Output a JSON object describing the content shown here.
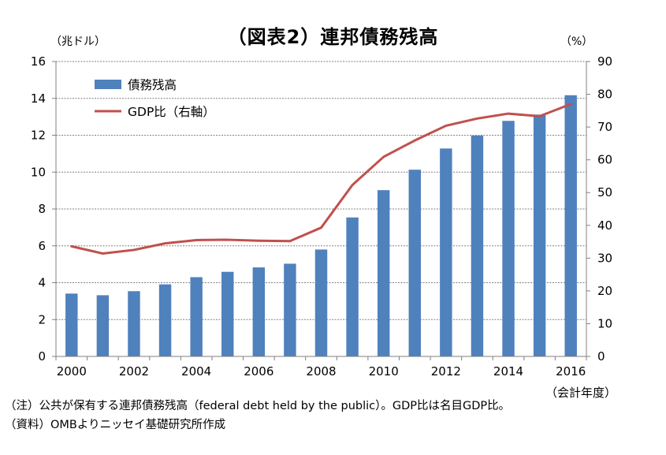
{
  "title": "（図表2）連邦債務残高",
  "left_axis_unit": "（兆ドル）",
  "right_axis_unit": "（%）",
  "x_axis_unit": "（会計年度）",
  "notes": [
    "（注）公共が保有する連邦債務残高（federal debt held by the public）。GDP比は名目GDP比。",
    "（資料）OMBよりニッセイ基礎研究所作成"
  ],
  "colors": {
    "bar": "#4f81bd",
    "line": "#c0504d",
    "grid": "#808080"
  },
  "chart_data": {
    "type": "bar",
    "x": [
      2000,
      2001,
      2002,
      2003,
      2004,
      2005,
      2006,
      2007,
      2008,
      2009,
      2010,
      2011,
      2012,
      2013,
      2014,
      2015,
      2016
    ],
    "x_tick_labels": [
      "2000",
      "2002",
      "2004",
      "2006",
      "2008",
      "2010",
      "2012",
      "2014",
      "2016"
    ],
    "series": [
      {
        "name": "債務残高",
        "type": "bar",
        "axis": "left",
        "values": [
          3.41,
          3.32,
          3.54,
          3.91,
          4.3,
          4.59,
          4.83,
          5.03,
          5.8,
          7.54,
          9.02,
          10.13,
          11.28,
          11.98,
          12.78,
          13.12,
          14.17
        ]
      },
      {
        "name": "GDP比（右軸）",
        "type": "line",
        "axis": "right",
        "values": [
          33.6,
          31.4,
          32.5,
          34.5,
          35.5,
          35.6,
          35.3,
          35.2,
          39.3,
          52.3,
          60.9,
          65.9,
          70.4,
          72.6,
          74.1,
          73.3,
          77.0
        ]
      }
    ],
    "y_left": {
      "min": 0,
      "max": 16,
      "step": 2,
      "ticks": [
        "0",
        "2",
        "4",
        "6",
        "8",
        "10",
        "12",
        "14",
        "16"
      ]
    },
    "y_right": {
      "min": 0,
      "max": 90,
      "step": 10,
      "ticks": [
        "0",
        "10",
        "20",
        "30",
        "40",
        "50",
        "60",
        "70",
        "80",
        "90"
      ]
    },
    "grid": true,
    "legend_position": "top-left"
  }
}
